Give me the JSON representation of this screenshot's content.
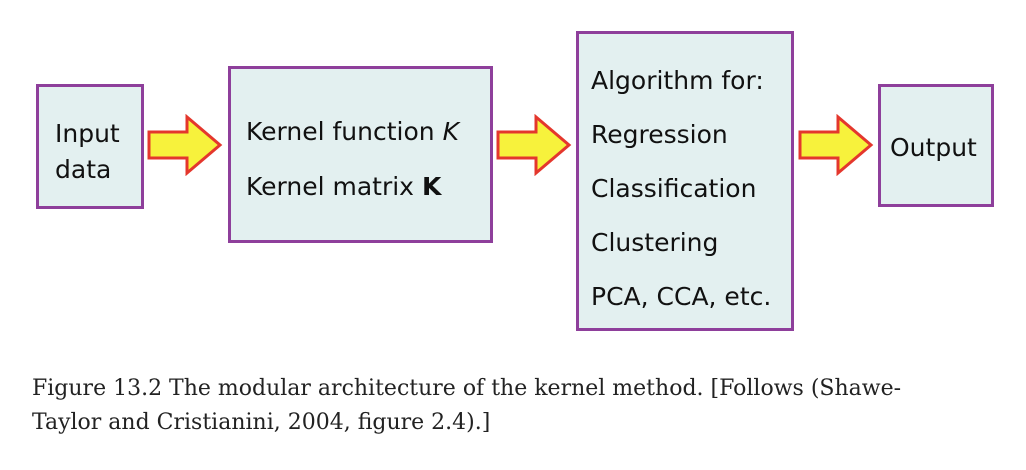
{
  "boxes": {
    "input": {
      "line1": "Input",
      "line2": "data"
    },
    "kernel": {
      "function_prefix": "Kernel function ",
      "function_symbol": "K",
      "matrix_prefix": "Kernel matrix ",
      "matrix_symbol": "K"
    },
    "algorithm": {
      "heading": "Algorithm for:",
      "items": [
        "Regression",
        "Classification",
        "Clustering",
        "PCA, CCA, etc."
      ]
    },
    "output": {
      "label": "Output"
    }
  },
  "colors": {
    "box_fill": "#e3f0f0",
    "box_border": "#8e3f9b",
    "arrow_fill": "#f7f23c",
    "arrow_stroke": "#e4372d"
  },
  "caption": {
    "line1": "Figure 13.2 The modular architecture of the kernel method. [Follows (Shawe-",
    "line2": "Taylor and Cristianini, 2004, figure 2.4).]"
  }
}
